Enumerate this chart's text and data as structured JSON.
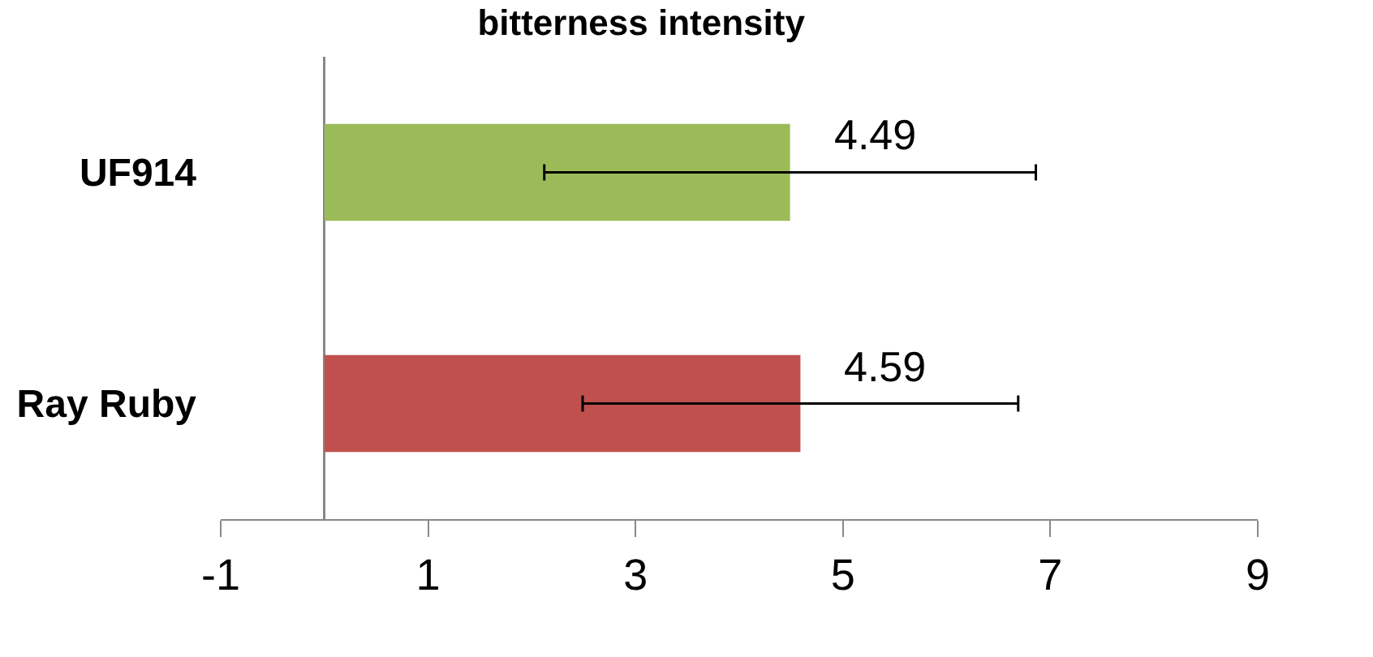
{
  "chart_data": {
    "type": "bar",
    "orientation": "horizontal",
    "title": "bitterness intensity",
    "categories": [
      "UF914",
      "Ray Ruby"
    ],
    "values": [
      4.49,
      4.59
    ],
    "colors": [
      "#9bbb59",
      "#c0504d"
    ],
    "errors": [
      2.37,
      2.1
    ],
    "data_labels": true,
    "xlim": [
      -1,
      9
    ],
    "xticks": [
      -1,
      1,
      3,
      5,
      7,
      9
    ],
    "grid": false
  }
}
